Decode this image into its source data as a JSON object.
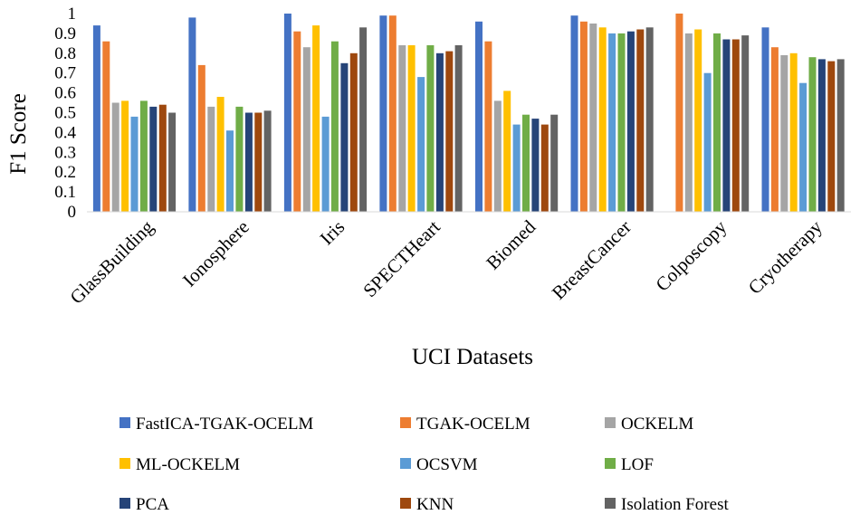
{
  "chart_data": {
    "type": "bar",
    "xlabel": "UCI Datasets",
    "ylabel": "F1 Score",
    "ylim": [
      0,
      1
    ],
    "yticks": [
      "0",
      "0.1",
      "0.2",
      "0.3",
      "0.4",
      "0.5",
      "0.6",
      "0.7",
      "0.8",
      "0.9",
      "1"
    ],
    "grid": false,
    "legend_position": "bottom",
    "categories": [
      "GlassBuilding",
      "Ionosphere",
      "Iris",
      "SPECTHeart",
      "Biomed",
      "BreastCancer",
      "Colposcopy",
      "Cryotherapy"
    ],
    "series": [
      {
        "name": "FastICA-TGAK-OCELM",
        "color": "#4472C4",
        "values": [
          0.94,
          0.98,
          1.0,
          0.99,
          0.96,
          0.99,
          null,
          0.93
        ]
      },
      {
        "name": "TGAK-OCELM",
        "color": "#ED7D31",
        "values": [
          0.86,
          0.74,
          0.91,
          0.99,
          0.86,
          0.96,
          1.0,
          0.83
        ]
      },
      {
        "name": "OCKELM",
        "color": "#A5A5A5",
        "values": [
          0.55,
          0.53,
          0.83,
          0.84,
          0.56,
          0.95,
          0.9,
          0.79
        ]
      },
      {
        "name": "ML-OCKELM",
        "color": "#FFC000",
        "values": [
          0.56,
          0.58,
          0.94,
          0.84,
          0.61,
          0.93,
          0.92,
          0.8
        ]
      },
      {
        "name": "OCSVM",
        "color": "#5B9BD5",
        "values": [
          0.48,
          0.41,
          0.48,
          0.68,
          0.44,
          0.9,
          0.7,
          0.65
        ]
      },
      {
        "name": "LOF",
        "color": "#70AD47",
        "values": [
          0.56,
          0.53,
          0.86,
          0.84,
          0.49,
          0.9,
          0.9,
          0.78
        ]
      },
      {
        "name": "PCA",
        "color": "#264478",
        "values": [
          0.53,
          0.5,
          0.75,
          0.8,
          0.47,
          0.91,
          0.87,
          0.77
        ]
      },
      {
        "name": "KNN",
        "color": "#9E480E",
        "values": [
          0.54,
          0.5,
          0.8,
          0.81,
          0.44,
          0.92,
          0.87,
          0.76
        ]
      },
      {
        "name": "Isolation Forest",
        "color": "#636363",
        "values": [
          0.5,
          0.51,
          0.93,
          0.84,
          0.49,
          0.93,
          0.89,
          0.77
        ]
      }
    ]
  }
}
